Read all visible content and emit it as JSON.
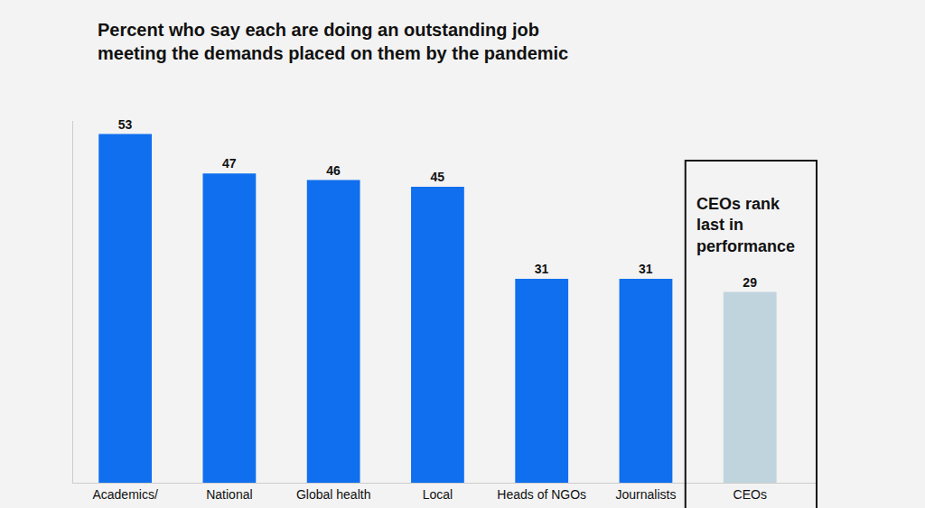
{
  "chart_data": {
    "type": "bar",
    "title": "Percent who say each are doing an outstanding job meeting the demands placed on them by the pandemic",
    "categories": [
      "Academics/",
      "National",
      "Global health",
      "Local",
      "Heads of NGOs",
      "Journalists",
      "CEOs"
    ],
    "values": [
      53,
      47,
      46,
      45,
      31,
      31,
      29
    ],
    "colors": [
      "#0f6fee",
      "#0f6fee",
      "#0f6fee",
      "#0f6fee",
      "#0f6fee",
      "#0f6fee",
      "#c0d4de"
    ],
    "ylim": [
      0,
      55
    ],
    "yticks": [],
    "grid": false,
    "data_labels": true,
    "tick_labels": "x",
    "annotations": [
      {
        "text": "CEOs rank last in performance",
        "category": "CEOs"
      }
    ]
  }
}
